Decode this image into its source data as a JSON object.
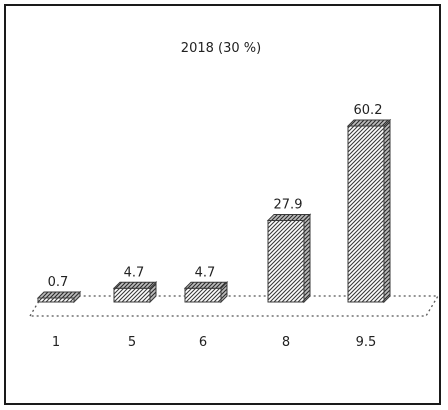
{
  "chart_data": {
    "type": "bar",
    "title": "2018 (30 %)",
    "categories": [
      "1",
      "5",
      "6",
      "8",
      "9.5"
    ],
    "values": [
      0.7,
      4.7,
      4.7,
      27.9,
      60.2
    ],
    "data_labels": [
      "0.7",
      "4.7",
      "4.7",
      "27.9",
      "60.2"
    ],
    "ylim": [
      0,
      65
    ],
    "grid": false,
    "legend": "none",
    "style": "3d-hatched",
    "colors": {
      "bar": "#9a9a9a",
      "stroke": "#3a3a3a",
      "floor": "#555555"
    }
  }
}
